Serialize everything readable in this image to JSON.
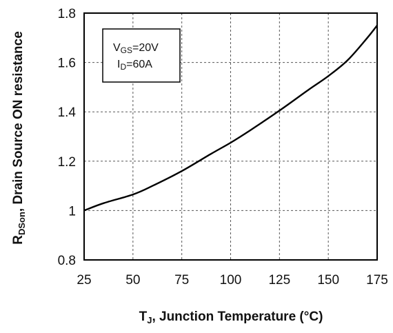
{
  "chart_data": {
    "type": "line",
    "xlabel": {
      "main": "T",
      "sub": "J",
      "rest": ", Junction Temperature (°C)"
    },
    "ylabel": {
      "main": "R",
      "sub": "DSon",
      "rest": ",   Drain Source ON resistance"
    },
    "xlim": [
      25,
      175
    ],
    "ylim": [
      0.8,
      1.8
    ],
    "x_ticks": [
      25,
      50,
      75,
      100,
      125,
      150,
      175
    ],
    "y_ticks": [
      0.8,
      1,
      1.2,
      1.4,
      1.6,
      1.8
    ],
    "x_tick_labels": [
      "25",
      "50",
      "75",
      "100",
      "125",
      "150",
      "175"
    ],
    "y_tick_labels": [
      "0.8",
      "1",
      "1.2",
      "1.4",
      "1.6",
      "1.8"
    ],
    "grid": true,
    "annotation": {
      "line1": {
        "main": "V",
        "sub": "GS",
        "rest": "=20V"
      },
      "line2": {
        "main": "I",
        "sub": "D",
        "rest": "=60A"
      }
    },
    "series": [
      {
        "x": [
          25,
          35,
          50,
          60,
          75,
          90,
          100,
          110,
          125,
          140,
          150,
          160,
          170,
          175
        ],
        "y": [
          1.0,
          1.03,
          1.065,
          1.1,
          1.16,
          1.23,
          1.275,
          1.325,
          1.405,
          1.49,
          1.545,
          1.61,
          1.7,
          1.75
        ]
      }
    ]
  }
}
